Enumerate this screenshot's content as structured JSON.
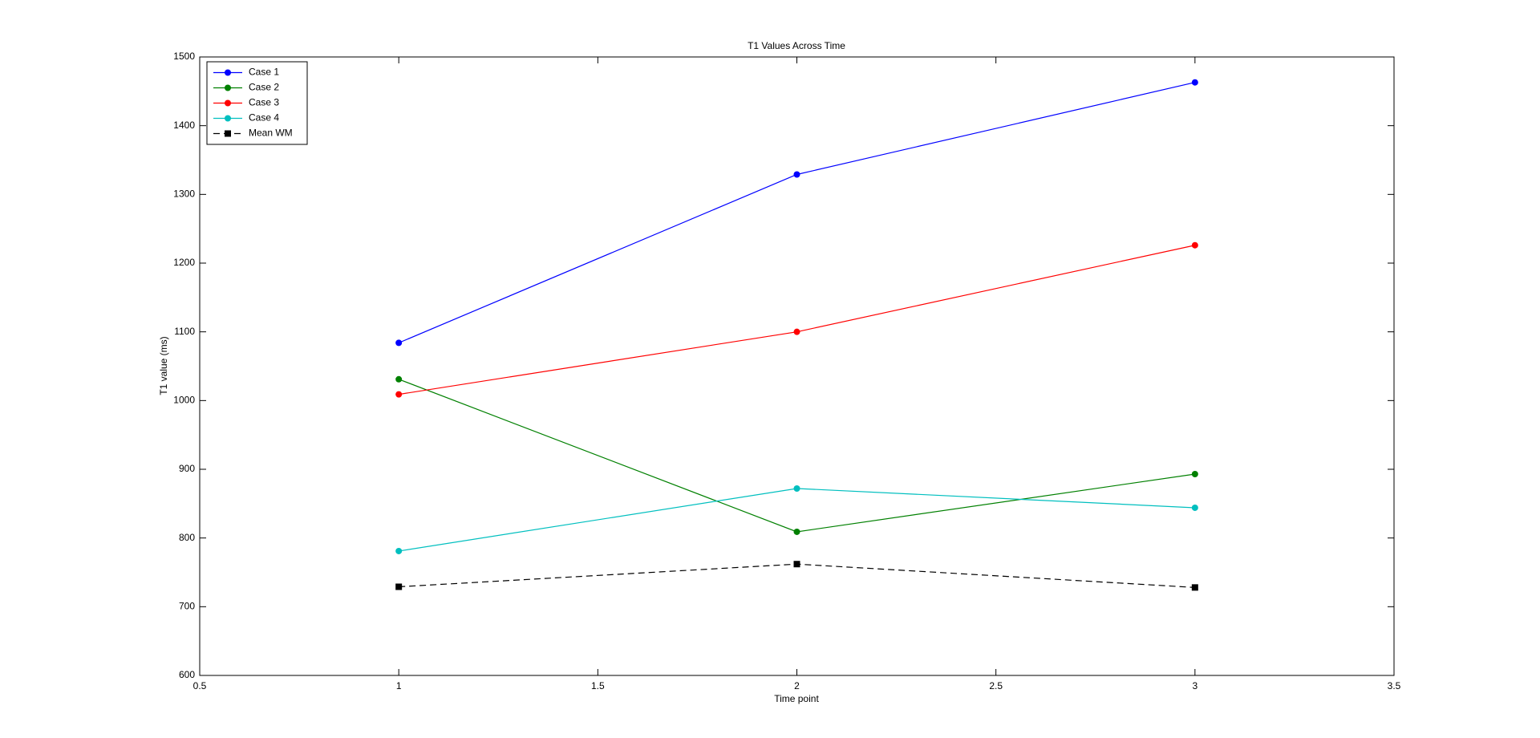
{
  "chart_data": {
    "type": "line",
    "title": "T1 Values Across Time",
    "xlabel": "Time point",
    "ylabel": "T1 value (ms)",
    "x": [
      1,
      2,
      3
    ],
    "series": [
      {
        "name": "Case 1",
        "color": "#0000ff",
        "linestyle": "solid",
        "marker": "circle",
        "values": [
          1084,
          1329,
          1463
        ]
      },
      {
        "name": "Case 2",
        "color": "#008000",
        "linestyle": "solid",
        "marker": "circle",
        "values": [
          1031,
          809,
          893
        ]
      },
      {
        "name": "Case 3",
        "color": "#ff0000",
        "linestyle": "solid",
        "marker": "circle",
        "values": [
          1009,
          1100,
          1226
        ]
      },
      {
        "name": "Case 4",
        "color": "#00bfbf",
        "linestyle": "solid",
        "marker": "circle",
        "values": [
          781,
          872,
          844
        ]
      },
      {
        "name": "Mean WM",
        "color": "#000000",
        "linestyle": "dashed",
        "marker": "square",
        "values": [
          729,
          762,
          728
        ]
      }
    ],
    "xlim": [
      0.5,
      3.5
    ],
    "xticks": [
      0.5,
      1,
      1.5,
      2,
      2.5,
      3,
      3.5
    ],
    "ylim": [
      600,
      1500
    ],
    "yticks": [
      600,
      700,
      800,
      900,
      1000,
      1100,
      1200,
      1300,
      1400,
      1500
    ],
    "grid": false,
    "legend": "upper left"
  }
}
